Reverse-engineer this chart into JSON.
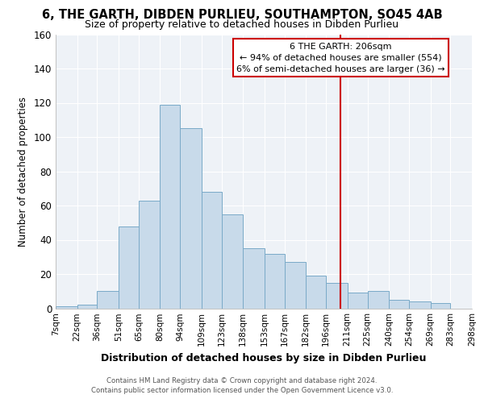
{
  "title": "6, THE GARTH, DIBDEN PURLIEU, SOUTHAMPTON, SO45 4AB",
  "subtitle": "Size of property relative to detached houses in Dibden Purlieu",
  "xlabel": "Distribution of detached houses by size in Dibden Purlieu",
  "ylabel": "Number of detached properties",
  "bin_edges": [
    7,
    22,
    36,
    51,
    65,
    80,
    94,
    109,
    123,
    138,
    153,
    167,
    182,
    196,
    211,
    225,
    240,
    254,
    269,
    283,
    298
  ],
  "bin_labels": [
    "7sqm",
    "22sqm",
    "36sqm",
    "51sqm",
    "65sqm",
    "80sqm",
    "94sqm",
    "109sqm",
    "123sqm",
    "138sqm",
    "153sqm",
    "167sqm",
    "182sqm",
    "196sqm",
    "211sqm",
    "225sqm",
    "240sqm",
    "254sqm",
    "269sqm",
    "283sqm",
    "298sqm"
  ],
  "bar_heights": [
    1,
    2,
    10,
    48,
    63,
    119,
    105,
    68,
    55,
    35,
    32,
    27,
    19,
    15,
    9,
    10,
    5,
    4,
    3,
    0
  ],
  "bar_color": "#c8daea",
  "bar_edge_color": "#7aaac8",
  "vline_x": 206,
  "vline_color": "#cc0000",
  "annotation_title": "6 THE GARTH: 206sqm",
  "annotation_line1": "← 94% of detached houses are smaller (554)",
  "annotation_line2": "6% of semi-detached houses are larger (36) →",
  "annotation_box_color": "#ffffff",
  "annotation_border_color": "#cc0000",
  "ylim": [
    0,
    160
  ],
  "yticks": [
    0,
    20,
    40,
    60,
    80,
    100,
    120,
    140,
    160
  ],
  "footnote1": "Contains HM Land Registry data © Crown copyright and database right 2024.",
  "footnote2": "Contains public sector information licensed under the Open Government Licence v3.0.",
  "title_fontsize": 10.5,
  "subtitle_fontsize": 9,
  "background_color": "#ffffff",
  "plot_bg_color": "#eef2f7"
}
